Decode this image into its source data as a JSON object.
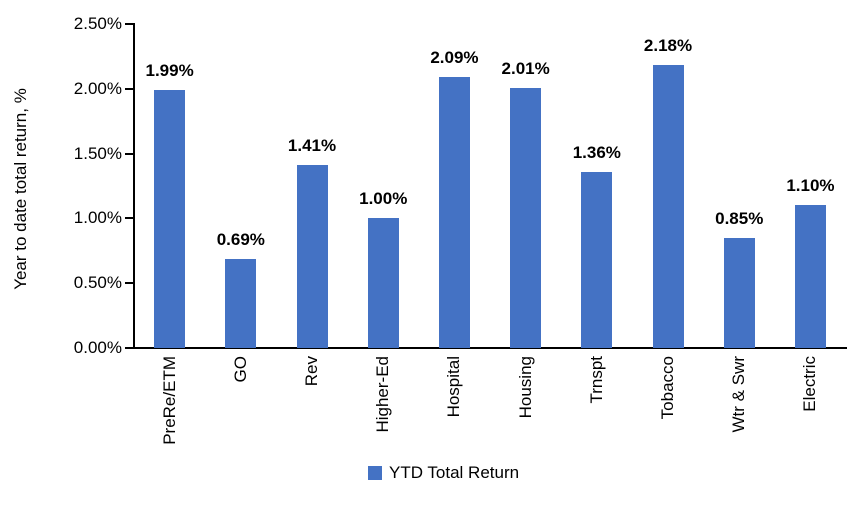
{
  "chart_data": {
    "type": "bar",
    "categories": [
      "PreRe/ETM",
      "GO",
      "Rev",
      "Higher-Ed",
      "Hospital",
      "Housing",
      "Trnspt",
      "Tobacco",
      "Wtr & Swr",
      "Electric"
    ],
    "values": [
      1.99,
      0.69,
      1.41,
      1.0,
      2.09,
      2.01,
      1.36,
      2.18,
      0.85,
      1.1
    ],
    "value_labels": [
      "1.99%",
      "0.69%",
      "1.41%",
      "1.00%",
      "2.09%",
      "2.01%",
      "1.36%",
      "2.18%",
      "0.85%",
      "1.10%"
    ],
    "title": "",
    "xlabel": "",
    "ylabel": "Year to date total return, %",
    "ylim": [
      0,
      2.5
    ],
    "y_tick_step": 0.5,
    "y_tick_labels": [
      "0.00%",
      "0.50%",
      "1.00%",
      "1.50%",
      "2.00%",
      "2.50%"
    ],
    "grid": false,
    "legend_position": "bottom",
    "legend": [
      {
        "label": "YTD Total Return",
        "color": "#4472C4"
      }
    ],
    "colors": {
      "bar": "#4472C4",
      "axis": "#000000",
      "text": "#000000",
      "background": "#ffffff"
    }
  }
}
